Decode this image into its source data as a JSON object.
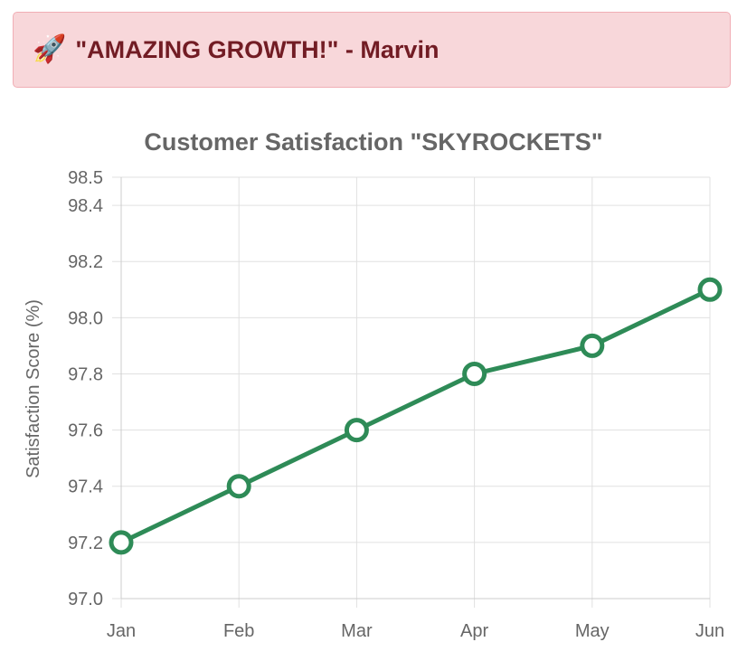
{
  "banner": {
    "icon": "rocket-icon",
    "text": "\"AMAZING GROWTH!\" - Marvin",
    "background": "#f8d7da",
    "text_color": "#721c24"
  },
  "chart_data": {
    "type": "line",
    "title": "Customer Satisfaction \"SKYROCKETS\"",
    "xlabel": "",
    "ylabel": "Satisfaction Score (%)",
    "categories": [
      "Jan",
      "Feb",
      "Mar",
      "Apr",
      "May",
      "Jun"
    ],
    "series": [
      {
        "values": [
          97.2,
          97.4,
          97.6,
          97.8,
          97.9,
          98.1
        ],
        "color": "#2e8b57"
      }
    ],
    "ylim": [
      97.0,
      98.5
    ],
    "yticks": [
      97.0,
      97.2,
      97.4,
      97.6,
      97.8,
      98.0,
      98.2,
      98.4,
      98.5
    ],
    "ytick_labels": [
      "97.0",
      "97.2",
      "97.4",
      "97.6",
      "97.8",
      "98.0",
      "98.2",
      "98.4",
      "98.5"
    ],
    "grid": true,
    "legend": "none"
  }
}
